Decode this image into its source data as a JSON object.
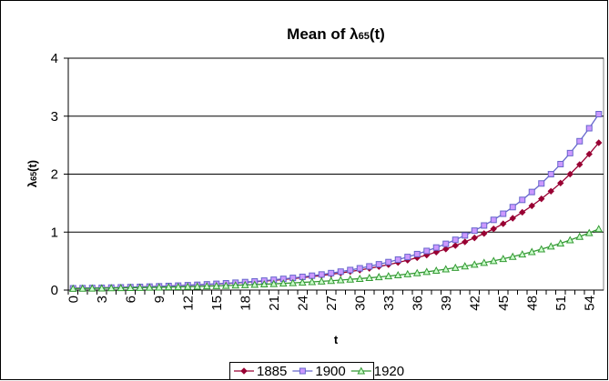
{
  "chart_data": {
    "type": "line",
    "title": [
      "Mean of λ",
      "65",
      "(t)"
    ],
    "x_label": "t",
    "y_label": [
      "λ",
      "65",
      "(t)"
    ],
    "categories": [
      0,
      null,
      null,
      3,
      null,
      null,
      6,
      null,
      null,
      9,
      null,
      null,
      12,
      null,
      null,
      15,
      null,
      null,
      18,
      null,
      null,
      21,
      null,
      null,
      24,
      null,
      null,
      27,
      null,
      null,
      30,
      null,
      null,
      33,
      null,
      null,
      36,
      null,
      null,
      39,
      null,
      null,
      42,
      null,
      null,
      45,
      null,
      null,
      48,
      null,
      null,
      51,
      null,
      null,
      54,
      null
    ],
    "ylim": [
      0,
      4
    ],
    "yticks": [
      0,
      1,
      2,
      3,
      4
    ],
    "grid": true,
    "legend": "bottom",
    "series": [
      {
        "name": "1885",
        "color": "#990033",
        "marker": "diamond",
        "marker_fill": "#990033",
        "values": [
          0.032,
          0.034,
          0.037,
          0.04,
          0.043,
          0.047,
          0.051,
          0.055,
          0.06,
          0.065,
          0.07,
          0.076,
          0.082,
          0.089,
          0.096,
          0.104,
          0.113,
          0.122,
          0.133,
          0.144,
          0.156,
          0.168,
          0.182,
          0.198,
          0.214,
          0.232,
          0.251,
          0.272,
          0.294,
          0.319,
          0.345,
          0.374,
          0.405,
          0.439,
          0.475,
          0.515,
          0.558,
          0.604,
          0.654,
          0.708,
          0.767,
          0.831,
          0.9,
          0.975,
          1.056,
          1.144,
          1.239,
          1.342,
          1.453,
          1.574,
          1.705,
          1.846,
          2.0,
          2.166,
          2.346,
          2.541
        ]
      },
      {
        "name": "1900",
        "color": "#6666cc",
        "marker": "square",
        "marker_fill": "#cc99ff",
        "values": [
          0.031,
          0.033,
          0.036,
          0.039,
          0.043,
          0.047,
          0.051,
          0.055,
          0.06,
          0.065,
          0.071,
          0.077,
          0.084,
          0.091,
          0.099,
          0.108,
          0.117,
          0.127,
          0.138,
          0.15,
          0.163,
          0.178,
          0.193,
          0.21,
          0.228,
          0.248,
          0.269,
          0.293,
          0.318,
          0.346,
          0.376,
          0.409,
          0.445,
          0.483,
          0.526,
          0.571,
          0.621,
          0.675,
          0.734,
          0.798,
          0.867,
          0.943,
          1.025,
          1.114,
          1.211,
          1.317,
          1.431,
          1.556,
          1.692,
          1.839,
          1.999,
          2.173,
          2.363,
          2.568,
          2.792,
          3.035
        ]
      },
      {
        "name": "1920",
        "color": "#339933",
        "marker": "triangle",
        "marker_fill": "#ccffcc",
        "values": [
          0.026,
          0.028,
          0.03,
          0.032,
          0.035,
          0.037,
          0.04,
          0.042,
          0.045,
          0.048,
          0.052,
          0.055,
          0.059,
          0.063,
          0.068,
          0.072,
          0.077,
          0.083,
          0.088,
          0.094,
          0.101,
          0.108,
          0.115,
          0.123,
          0.132,
          0.141,
          0.151,
          0.161,
          0.173,
          0.185,
          0.197,
          0.211,
          0.226,
          0.241,
          0.258,
          0.276,
          0.295,
          0.315,
          0.337,
          0.361,
          0.386,
          0.412,
          0.441,
          0.472,
          0.504,
          0.539,
          0.577,
          0.617,
          0.659,
          0.705,
          0.754,
          0.806,
          0.862,
          0.922,
          0.986,
          1.054
        ]
      }
    ]
  }
}
